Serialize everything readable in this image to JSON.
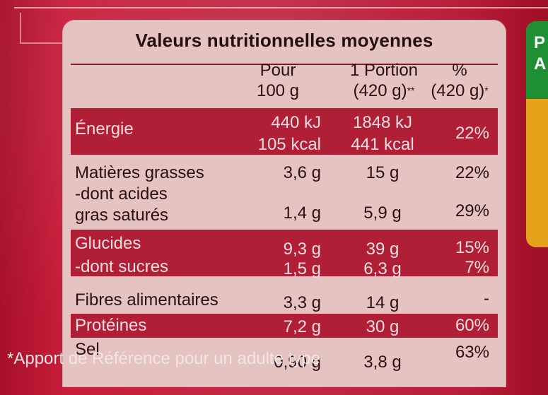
{
  "panel": {
    "title": "Valeurs nutritionnelles moyennes",
    "headers": {
      "col1_line1": "Pour",
      "col1_line2": "100 g",
      "col2_line1": "1 Portion",
      "col2_line2": "(420 g)",
      "col2_mark": "**",
      "col3_line1": "%",
      "col3_line2": "(420 g)",
      "col3_mark": "*"
    },
    "rows": [
      {
        "label": "Énergie",
        "per100_1": "440 kJ",
        "per100_2": "105 kcal",
        "portion_1": "1848 kJ",
        "portion_2": "441 kcal",
        "pct": "22%"
      },
      {
        "label": "Matières grasses",
        "per100": "3,6 g",
        "portion": "15 g",
        "pct": "22%"
      },
      {
        "label": "-dont acides",
        "label2": "gras saturés",
        "per100": "1,4 g",
        "portion": "5,9 g",
        "pct": "29%"
      },
      {
        "label": "Glucides",
        "per100": "9,3 g",
        "portion": "39 g",
        "pct": "15%"
      },
      {
        "label": "-dont sucres",
        "per100": "1,5 g",
        "portion": "6,3 g",
        "pct": "7%"
      },
      {
        "label": "Fibres alimentaires",
        "per100": "3,3 g",
        "portion": "14 g",
        "pct": "-"
      },
      {
        "label": "Protéines",
        "per100": "7,2 g",
        "portion": "30 g",
        "pct": "60%"
      },
      {
        "label": "Sel",
        "per100": "0,90 g",
        "portion": "3,8 g",
        "pct": "63%"
      }
    ],
    "footnote": "*Apport de Référence pour un adulte type"
  },
  "side_card": {
    "letters_1": "P",
    "letters_2": "A"
  },
  "colors": {
    "panel": "#e4c3c1",
    "band": "#b01f36",
    "packaging": "#c22a44"
  }
}
